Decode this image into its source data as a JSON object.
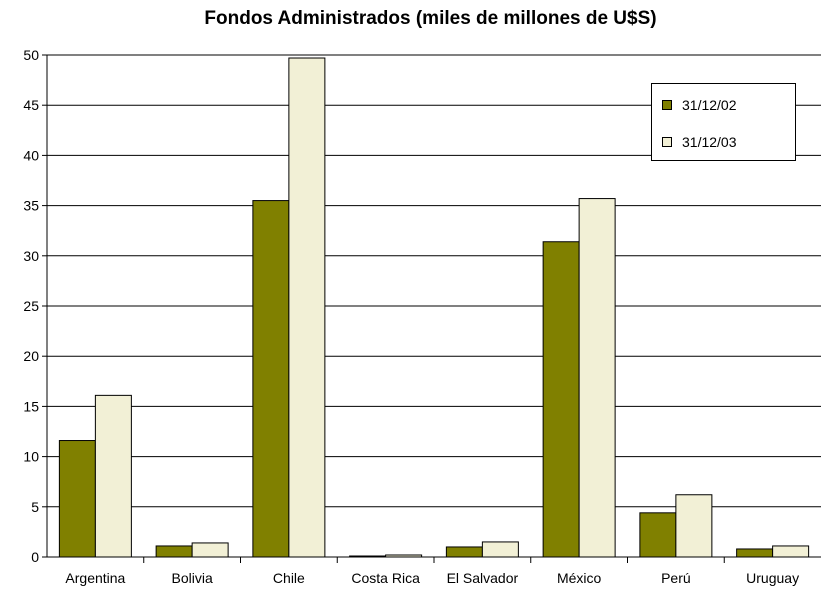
{
  "chart_data": {
    "type": "bar",
    "title": "Fondos Administrados (miles de millones de U$S)",
    "xlabel": "",
    "ylabel": "",
    "categories": [
      "Argentina",
      "Bolivia",
      "Chile",
      "Costa Rica",
      "El Salvador",
      "México",
      "Perú",
      "Uruguay"
    ],
    "series": [
      {
        "name": "31/12/02",
        "color": "#808000",
        "values": [
          11.6,
          1.1,
          35.5,
          0.1,
          1.0,
          31.4,
          4.4,
          0.8
        ]
      },
      {
        "name": "31/12/03",
        "color": "#f2f0d6",
        "values": [
          16.1,
          1.4,
          49.7,
          0.2,
          1.5,
          35.7,
          6.2,
          1.1
        ]
      }
    ],
    "ylim": [
      0,
      50
    ],
    "yticks": [
      0,
      5,
      10,
      15,
      20,
      25,
      30,
      35,
      40,
      45,
      50
    ],
    "grid": true,
    "legend_position": "top-right"
  }
}
